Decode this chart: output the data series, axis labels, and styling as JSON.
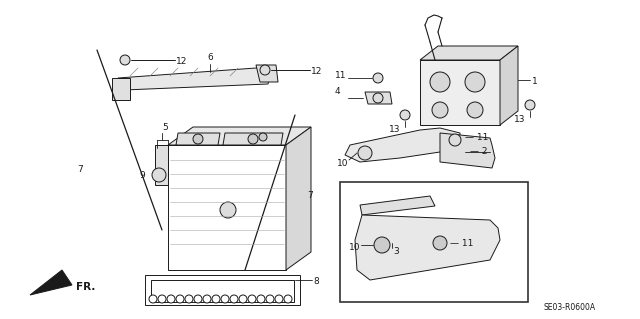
{
  "bg_color": "#ffffff",
  "fig_width": 6.4,
  "fig_height": 3.19,
  "dpi": 100,
  "part_code": "SE03-R0600A",
  "fr_label": "FR."
}
